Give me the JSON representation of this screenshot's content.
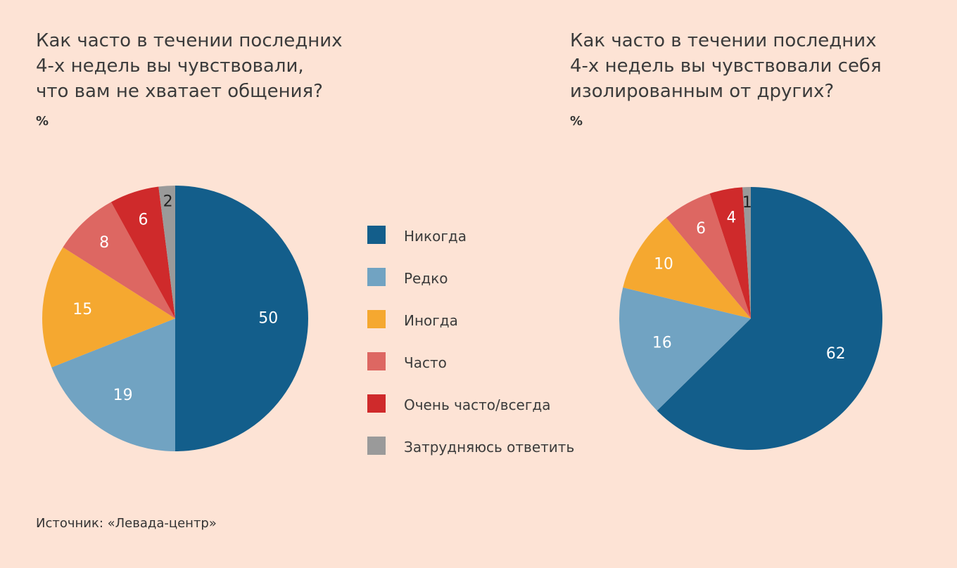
{
  "colors": {
    "background": "#fde3d5",
    "never": "#135e8b",
    "rarely": "#71a3c2",
    "sometimes": "#f5a830",
    "often": "#dd6762",
    "very_often": "#cf2a2b",
    "hard_to_say": "#9a9a9a"
  },
  "legend": [
    {
      "label": "Никогда",
      "color": "#135e8b"
    },
    {
      "label": "Редко",
      "color": "#71a3c2"
    },
    {
      "label": "Иногда",
      "color": "#f5a830"
    },
    {
      "label": "Часто",
      "color": "#dd6762"
    },
    {
      "label": "Очень часто/всегда",
      "color": "#cf2a2b"
    },
    {
      "label": "Затрудняюсь ответить",
      "color": "#9a9a9a"
    }
  ],
  "chart_data": [
    {
      "type": "pie",
      "title": "Как часто в течении последних\n4-х недель вы чувствовали,\nчто вам не хватает общения?",
      "unit": "%",
      "categories": [
        "Никогда",
        "Редко",
        "Иногда",
        "Часто",
        "Очень часто/всегда",
        "Затрудняюсь ответить"
      ],
      "values": [
        50,
        19,
        15,
        8,
        6,
        2
      ],
      "colors": [
        "#135e8b",
        "#71a3c2",
        "#f5a830",
        "#dd6762",
        "#cf2a2b",
        "#9a9a9a"
      ]
    },
    {
      "type": "pie",
      "title": "Как часто в течении последних\n4-х недель вы чувствовали себя\nизолированным от других?",
      "unit": "%",
      "categories": [
        "Никогда",
        "Редко",
        "Иногда",
        "Часто",
        "Очень часто/всегда",
        "Затрудняюсь ответить"
      ],
      "values": [
        62,
        16,
        10,
        6,
        4,
        1
      ],
      "colors": [
        "#135e8b",
        "#71a3c2",
        "#f5a830",
        "#dd6762",
        "#cf2a2b",
        "#9a9a9a"
      ]
    }
  ],
  "source": "Источник: «Левада-центр»"
}
